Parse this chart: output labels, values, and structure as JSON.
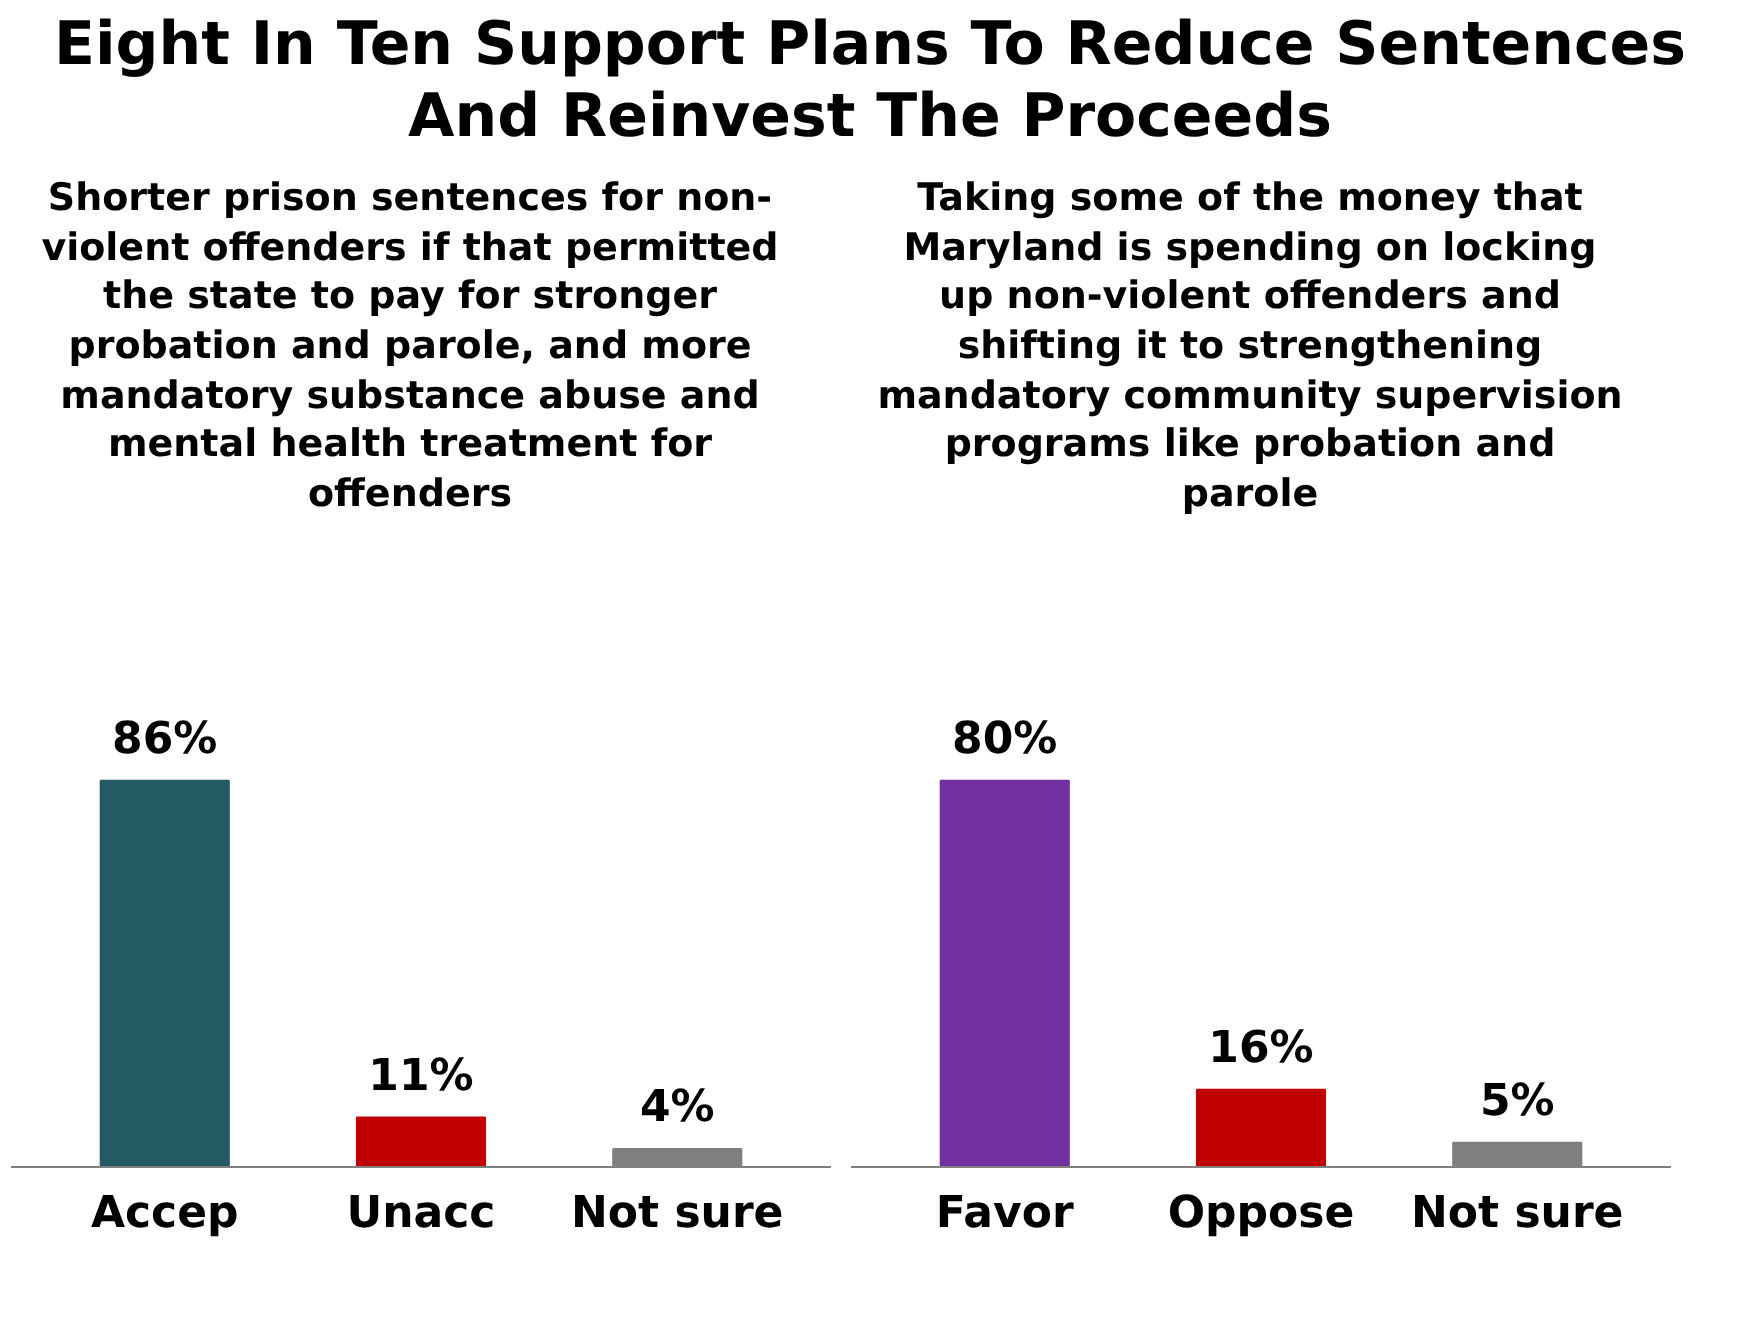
{
  "chart_data": [
    {
      "type": "bar",
      "title": "Eight In Ten Support Plans To Reduce Sentences And Reinvest The Proceeds",
      "subtitle": "Shorter prison sentences for non-violent offenders if that permitted the state to pay for stronger probation and parole, and more mandatory substance abuse and mental health treatment for offenders",
      "categories": [
        "Accep",
        "Unacc",
        "Not sure"
      ],
      "values": [
        86,
        11,
        4
      ],
      "value_labels": [
        "86%",
        "11%",
        "4%"
      ],
      "colors": [
        "#235a64",
        "#c00000",
        "#7f7f7f"
      ]
    },
    {
      "type": "bar",
      "subtitle": "Taking some of the money that Maryland is spending on locking up non-violent offenders and shifting it to strengthening mandatory community supervision programs like probation and parole",
      "categories": [
        "Favor",
        "Oppose",
        "Not sure"
      ],
      "values": [
        80,
        16,
        5
      ],
      "value_labels": [
        "80%",
        "16%",
        "5%"
      ],
      "colors": [
        "#7030a0",
        "#c00000",
        "#7f7f7f"
      ]
    }
  ]
}
